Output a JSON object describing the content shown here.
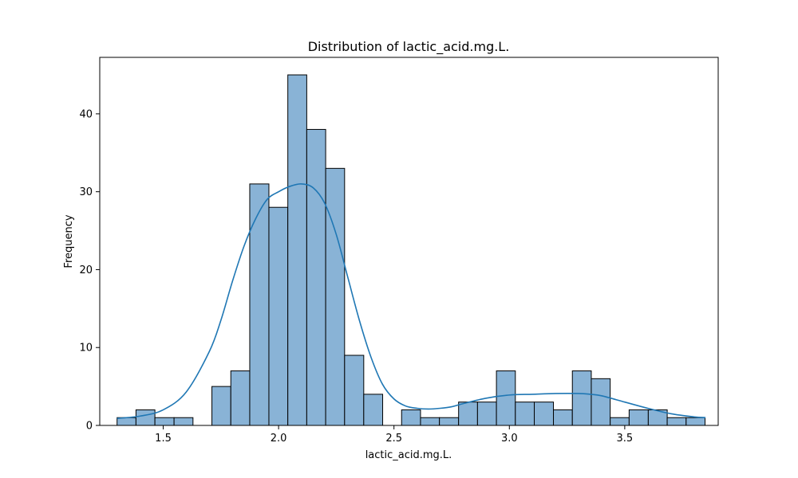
{
  "chart_data": {
    "type": "bar",
    "title": "Distribution of lactic_acid.mg.L.",
    "xlabel": "lactic_acid.mg.L.",
    "ylabel": "Frequency",
    "xlim": [
      1.225,
      3.905
    ],
    "ylim": [
      0,
      47.25
    ],
    "grid": false,
    "legend": "none",
    "x_ticks": [
      1.5,
      2.0,
      2.5,
      3.0,
      3.5
    ],
    "x_tick_labels": [
      "1.5",
      "2.0",
      "2.5",
      "3.0",
      "3.5"
    ],
    "y_ticks": [
      0,
      10,
      20,
      30,
      40
    ],
    "y_tick_labels": [
      "0",
      "10",
      "20",
      "30",
      "40"
    ],
    "bin_start": 1.3,
    "bin_width": 0.0822,
    "bins": [
      {
        "x0": 1.3,
        "x1": 1.382,
        "count": 1
      },
      {
        "x0": 1.382,
        "x1": 1.464,
        "count": 2
      },
      {
        "x0": 1.464,
        "x1": 1.547,
        "count": 1
      },
      {
        "x0": 1.547,
        "x1": 1.629,
        "count": 1
      },
      {
        "x0": 1.629,
        "x1": 1.711,
        "count": 0
      },
      {
        "x0": 1.711,
        "x1": 1.793,
        "count": 5
      },
      {
        "x0": 1.793,
        "x1": 1.875,
        "count": 7
      },
      {
        "x0": 1.875,
        "x1": 1.958,
        "count": 31
      },
      {
        "x0": 1.958,
        "x1": 2.04,
        "count": 28
      },
      {
        "x0": 2.04,
        "x1": 2.122,
        "count": 45
      },
      {
        "x0": 2.122,
        "x1": 2.204,
        "count": 38
      },
      {
        "x0": 2.204,
        "x1": 2.286,
        "count": 33
      },
      {
        "x0": 2.286,
        "x1": 2.369,
        "count": 9
      },
      {
        "x0": 2.369,
        "x1": 2.451,
        "count": 4
      },
      {
        "x0": 2.451,
        "x1": 2.533,
        "count": 0
      },
      {
        "x0": 2.533,
        "x1": 2.615,
        "count": 2
      },
      {
        "x0": 2.615,
        "x1": 2.697,
        "count": 1
      },
      {
        "x0": 2.697,
        "x1": 2.78,
        "count": 1
      },
      {
        "x0": 2.78,
        "x1": 2.862,
        "count": 3
      },
      {
        "x0": 2.862,
        "x1": 2.944,
        "count": 3
      },
      {
        "x0": 2.944,
        "x1": 3.026,
        "count": 7
      },
      {
        "x0": 3.026,
        "x1": 3.108,
        "count": 3
      },
      {
        "x0": 3.108,
        "x1": 3.191,
        "count": 3
      },
      {
        "x0": 3.191,
        "x1": 3.273,
        "count": 2
      },
      {
        "x0": 3.273,
        "x1": 3.355,
        "count": 7
      },
      {
        "x0": 3.355,
        "x1": 3.437,
        "count": 6
      },
      {
        "x0": 3.437,
        "x1": 3.519,
        "count": 1
      },
      {
        "x0": 3.519,
        "x1": 3.602,
        "count": 2
      },
      {
        "x0": 3.602,
        "x1": 3.684,
        "count": 2
      },
      {
        "x0": 3.684,
        "x1": 3.766,
        "count": 1
      },
      {
        "x0": 3.766,
        "x1": 3.848,
        "count": 1
      }
    ],
    "kde": {
      "x": [
        1.3,
        1.4,
        1.5,
        1.6,
        1.7,
        1.75,
        1.8,
        1.85,
        1.9,
        1.95,
        2.0,
        2.05,
        2.1,
        2.15,
        2.2,
        2.25,
        2.3,
        2.35,
        2.4,
        2.45,
        2.5,
        2.55,
        2.6,
        2.65,
        2.7,
        2.75,
        2.8,
        2.9,
        3.0,
        3.1,
        3.2,
        3.3,
        3.35,
        3.4,
        3.5,
        3.6,
        3.7,
        3.8,
        3.85
      ],
      "y": [
        0.9,
        1.2,
        2.0,
        4.3,
        9.5,
        13.5,
        18.5,
        23.0,
        26.5,
        29.0,
        30.0,
        30.7,
        31.0,
        30.5,
        28.5,
        24.5,
        19.0,
        13.5,
        8.8,
        5.3,
        3.4,
        2.5,
        2.2,
        2.1,
        2.2,
        2.4,
        2.8,
        3.5,
        3.9,
        4.0,
        4.1,
        4.1,
        4.0,
        3.8,
        3.0,
        2.2,
        1.5,
        1.1,
        1.0
      ]
    },
    "colors": {
      "bar_fill": "#89b3d6",
      "bar_edge": "#000000",
      "kde_line": "#1f77b4"
    }
  }
}
